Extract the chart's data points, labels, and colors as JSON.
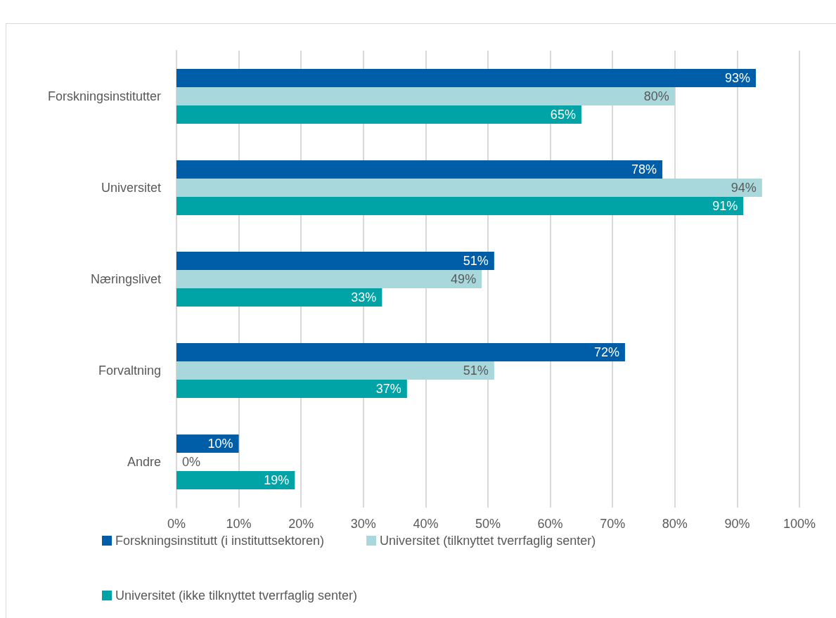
{
  "chart_data": {
    "type": "bar",
    "orientation": "horizontal",
    "categories": [
      "Forskningsinstitutter",
      "Universitet",
      "Næringslivet",
      "Forvaltning",
      "Andre"
    ],
    "series": [
      {
        "name": "Forskningsinstitutt (i instituttsektoren)",
        "color": "#005ea8",
        "values": [
          93,
          78,
          51,
          72,
          10
        ],
        "value_labels": [
          "93%",
          "78%",
          "51%",
          "72%",
          "10%"
        ]
      },
      {
        "name": "Universitet (tilknyttet tverrfaglig senter)",
        "color": "#a8d8dc",
        "values": [
          80,
          94,
          49,
          51,
          0
        ],
        "value_labels": [
          "80%",
          "94%",
          "49%",
          "51%",
          "0%"
        ]
      },
      {
        "name": "Universitet (ikke tilknyttet tverrfaglig senter)",
        "color": "#00a3a6",
        "values": [
          65,
          91,
          33,
          37,
          19
        ],
        "value_labels": [
          "65%",
          "91%",
          "33%",
          "37%",
          "19%"
        ]
      }
    ],
    "xlim": [
      0,
      100
    ],
    "xticks": [
      {
        "value": 0,
        "label": "0%"
      },
      {
        "value": 10,
        "label": "10%"
      },
      {
        "value": 20,
        "label": "20%"
      },
      {
        "value": 30,
        "label": "30%"
      },
      {
        "value": 40,
        "label": "40%"
      },
      {
        "value": 50,
        "label": "50%"
      },
      {
        "value": 60,
        "label": "60%"
      },
      {
        "value": 70,
        "label": "70%"
      },
      {
        "value": 80,
        "label": "80%"
      },
      {
        "value": 90,
        "label": "90%"
      },
      {
        "value": 100,
        "label": "100%"
      }
    ],
    "grid": "x",
    "legend": "bottom"
  }
}
